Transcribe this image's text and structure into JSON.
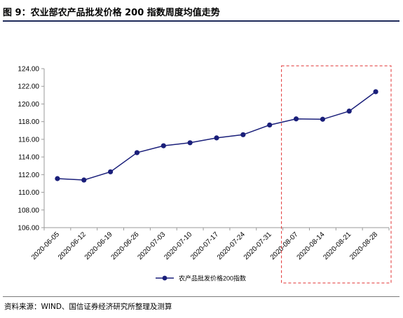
{
  "title": "图 9：农业部农产品批发价格 200 指数周度均值走势",
  "source": "资料来源：WIND、国信证券经济研究所整理及测算",
  "chart_data": {
    "type": "line",
    "categories": [
      "2020-06-05",
      "2020-06-12",
      "2020-06-19",
      "2020-06-26",
      "2020-07-03",
      "2020-07-10",
      "2020-07-17",
      "2020-07-24",
      "2020-07-31",
      "2020-08-07",
      "2020-08-14",
      "2020-08-21",
      "2020-08-28"
    ],
    "series": [
      {
        "name": "农产品批发价格200指数",
        "values": [
          111.55,
          111.39,
          112.32,
          114.49,
          115.27,
          115.61,
          116.16,
          116.52,
          117.62,
          118.31,
          118.27,
          119.19,
          121.39
        ],
        "color": "#1a1f7a"
      }
    ],
    "ylim": [
      106,
      124
    ],
    "yticks": [
      "106.00",
      "108.00",
      "110.00",
      "112.00",
      "114.00",
      "116.00",
      "118.00",
      "120.00",
      "122.00",
      "124.00"
    ],
    "grid": false,
    "legend_position": "bottom",
    "highlight": {
      "from_category": "2020-08-07",
      "to_category": "2020-08-28",
      "color": "#e03030"
    },
    "xlabel": "",
    "ylabel": ""
  }
}
